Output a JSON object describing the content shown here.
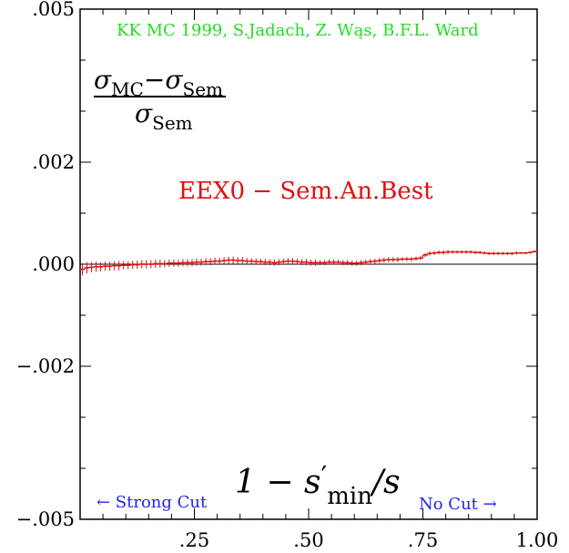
{
  "chart_data": {
    "type": "line",
    "xlim": [
      0.0,
      1.0
    ],
    "ylim": [
      -0.005,
      0.005
    ],
    "x_ticks": [
      0.25,
      0.5,
      0.75,
      1.0
    ],
    "x_tick_labels": [
      ".25",
      ".50",
      ".75",
      "1.00"
    ],
    "y_ticks": [
      0.005,
      0.002,
      0.0,
      -0.002,
      -0.005
    ],
    "y_tick_labels": [
      ".005",
      ".002",
      ".000",
      "−.002",
      "−.005"
    ],
    "credit": "KK MC 1999, S.Jadach, Z. Wąs, B.F.L. Ward",
    "series_label": "EEX0 − Sem.An.Best",
    "ylabel": {
      "sigma": "σ",
      "sub_mc": "MC",
      "minus": "−",
      "sub_sem": "Sem"
    },
    "xlabel": {
      "lead": "1 − s",
      "prime": "′",
      "sub": "min",
      "tail": "/s"
    },
    "note_left": "← Strong Cut",
    "note_right": "No Cut →",
    "colors": {
      "series": "#dd1111",
      "credit": "#22dd22",
      "note": "#2222ee",
      "axis": "#000000"
    },
    "series": [
      {
        "x": [
          0.005,
          0.015,
          0.025,
          0.035,
          0.045,
          0.055,
          0.065,
          0.075,
          0.085,
          0.095,
          0.105,
          0.115,
          0.125,
          0.135,
          0.145,
          0.155,
          0.165,
          0.175,
          0.185,
          0.195,
          0.205,
          0.215,
          0.225,
          0.235,
          0.245,
          0.255,
          0.265,
          0.275,
          0.285,
          0.295,
          0.305,
          0.315,
          0.325,
          0.335,
          0.345,
          0.355,
          0.365,
          0.375,
          0.385,
          0.395,
          0.405,
          0.415,
          0.425,
          0.435,
          0.445,
          0.455,
          0.465,
          0.475,
          0.485,
          0.495,
          0.505,
          0.515,
          0.525,
          0.535,
          0.545,
          0.555,
          0.565,
          0.575,
          0.585,
          0.595,
          0.605,
          0.615,
          0.625,
          0.635,
          0.645,
          0.655,
          0.665,
          0.675,
          0.685,
          0.695,
          0.705,
          0.715,
          0.725,
          0.735,
          0.745,
          0.755,
          0.765,
          0.775,
          0.785,
          0.795,
          0.805,
          0.815,
          0.825,
          0.835,
          0.845,
          0.855,
          0.865,
          0.875,
          0.885,
          0.895,
          0.905,
          0.915,
          0.925,
          0.935,
          0.945,
          0.955,
          0.965,
          0.975,
          0.985,
          0.995
        ],
        "y": [
          -0.0001,
          -7e-05,
          -6e-05,
          -5e-05,
          -5e-05,
          -4e-05,
          -4e-05,
          -3e-05,
          -3e-05,
          -2e-05,
          -2e-05,
          -1e-05,
          -1e-05,
          0.0,
          0.0,
          0.0,
          1e-05,
          1e-05,
          1e-05,
          2e-05,
          2e-05,
          2e-05,
          3e-05,
          3e-05,
          3e-05,
          4e-05,
          4e-05,
          5e-05,
          5e-05,
          6e-05,
          6e-05,
          7e-05,
          8e-05,
          8e-05,
          7e-05,
          7e-05,
          6e-05,
          6e-05,
          5e-05,
          5e-05,
          4e-05,
          4e-05,
          3e-05,
          4e-05,
          5e-05,
          6e-05,
          6e-05,
          5e-05,
          4e-05,
          4e-05,
          3e-05,
          3e-05,
          3e-05,
          3e-05,
          4e-05,
          4e-05,
          4e-05,
          3e-05,
          3e-05,
          2e-05,
          2e-05,
          3e-05,
          4e-05,
          5e-05,
          6e-05,
          7e-05,
          8e-05,
          9e-05,
          9e-05,
          9e-05,
          0.0001,
          0.0001,
          0.0001,
          0.00011,
          0.00012,
          0.00018,
          0.00021,
          0.00022,
          0.00023,
          0.00023,
          0.00024,
          0.00024,
          0.00024,
          0.00024,
          0.00024,
          0.00024,
          0.00023,
          0.00023,
          0.00022,
          0.00021,
          0.00021,
          0.00021,
          0.00021,
          0.00021,
          0.00021,
          0.00022,
          0.00022,
          0.00022,
          0.00023,
          0.00025
        ],
        "err": [
          0.00012,
          0.00011,
          0.0001,
          0.0001,
          9e-05,
          9e-05,
          9e-05,
          9e-05,
          9e-05,
          8e-05,
          8e-05,
          8e-05,
          8e-05,
          8e-05,
          8e-05,
          8e-05,
          8e-05,
          8e-05,
          7e-05,
          7e-05,
          7e-05,
          7e-05,
          7e-05,
          7e-05,
          7e-05,
          7e-05,
          7e-05,
          7e-05,
          7e-05,
          7e-05,
          7e-05,
          7e-05,
          7e-05,
          7e-05,
          7e-05,
          7e-05,
          6e-05,
          6e-05,
          6e-05,
          6e-05,
          6e-05,
          6e-05,
          6e-05,
          6e-05,
          6e-05,
          6e-05,
          6e-05,
          6e-05,
          6e-05,
          6e-05,
          6e-05,
          6e-05,
          5e-05,
          5e-05,
          5e-05,
          5e-05,
          5e-05,
          5e-05,
          5e-05,
          5e-05,
          5e-05,
          5e-05,
          5e-05,
          5e-05,
          5e-05,
          5e-05,
          5e-05,
          5e-05,
          5e-05,
          5e-05,
          4e-05,
          4e-05,
          4e-05,
          4e-05,
          4e-05,
          4e-05,
          4e-05,
          4e-05,
          4e-05,
          4e-05,
          4e-05,
          3e-05,
          3e-05,
          3e-05,
          3e-05,
          3e-05,
          3e-05,
          3e-05,
          3e-05,
          3e-05,
          3e-05,
          3e-05,
          3e-05,
          3e-05,
          3e-05,
          3e-05,
          2e-05,
          2e-05,
          2e-05,
          2e-05
        ]
      }
    ]
  }
}
